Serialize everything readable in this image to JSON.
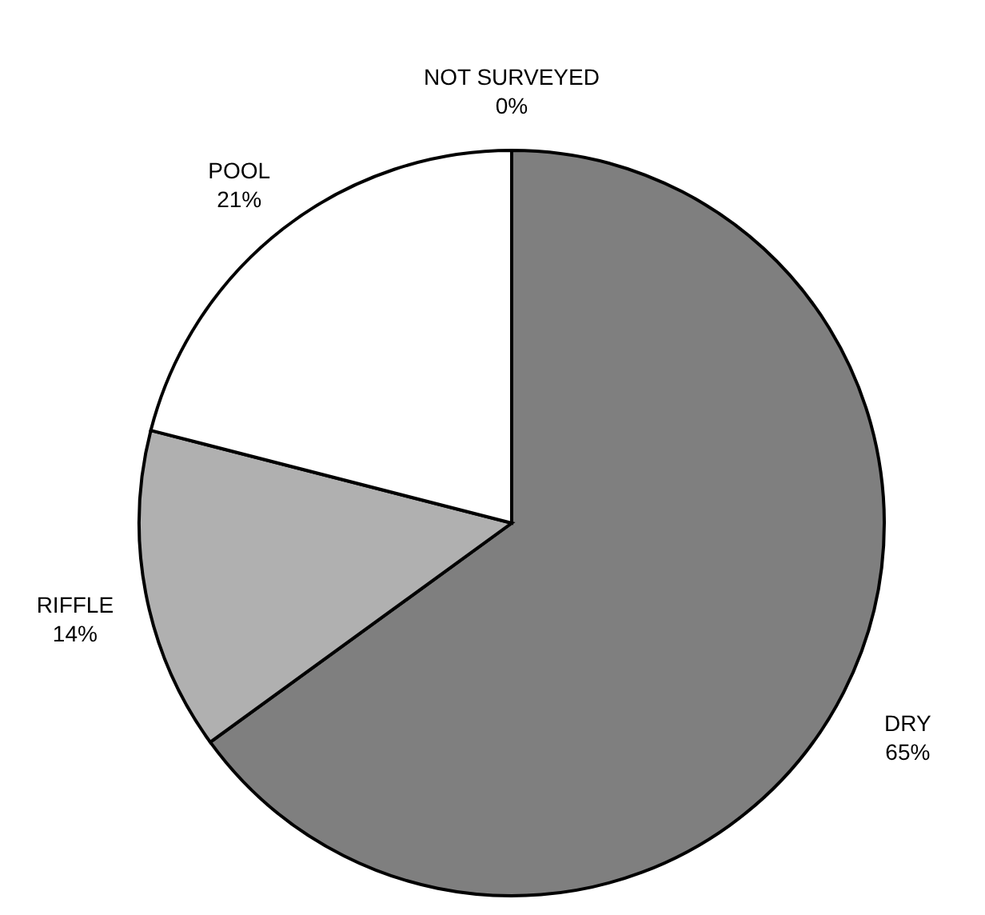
{
  "chart_data": {
    "type": "pie",
    "categories": [
      "NOT SURVEYED",
      "DRY",
      "RIFFLE",
      "POOL"
    ],
    "values": [
      0,
      65,
      14,
      21
    ],
    "colors": [
      "#ffffff",
      "#7f7f7f",
      "#b0b0b0",
      "#ffffff"
    ],
    "value_labels": [
      "0%",
      "65%",
      "14%",
      "21%"
    ]
  }
}
